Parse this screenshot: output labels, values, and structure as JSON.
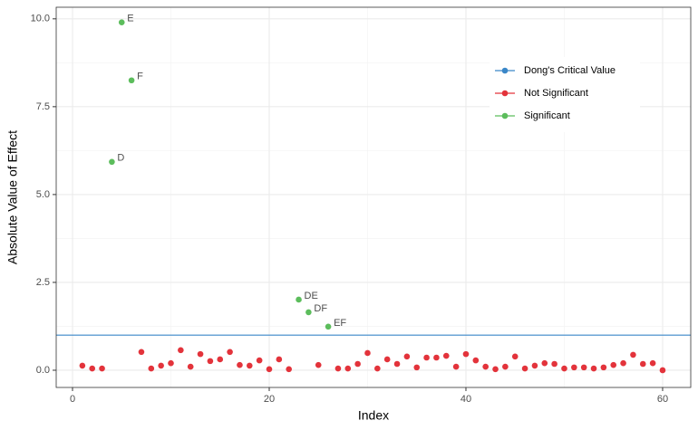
{
  "chart_data": {
    "type": "scatter",
    "xlabel": "Index",
    "ylabel": "Absolute Value of Effect",
    "xlim": [
      -1.66,
      62.86
    ],
    "ylim": [
      -0.49,
      10.33
    ],
    "xticks": [
      0,
      20,
      40,
      60
    ],
    "yticks": [
      {
        "value": 0,
        "label": "0.0"
      },
      2.5,
      {
        "value": 5,
        "label": "5.0"
      },
      7.5,
      {
        "value": 10,
        "label": "10.0"
      }
    ],
    "grid": true,
    "legend": "top-right",
    "series": [
      {
        "name": "Dong's Critical Value",
        "kind": "hline",
        "color": "#3a87c8",
        "values": [
          1.0
        ]
      },
      {
        "name": "Not Significant",
        "kind": "points",
        "color": "#e3333b",
        "x": [
          1,
          2,
          3,
          7,
          8,
          9,
          10,
          11,
          12,
          13,
          14,
          15,
          16,
          17,
          18,
          19,
          20,
          21,
          22,
          25,
          27,
          28,
          29,
          30,
          31,
          32,
          33,
          34,
          35,
          36,
          37,
          38,
          39,
          40,
          41,
          42,
          43,
          44,
          45,
          46,
          47,
          48,
          49,
          50,
          51,
          52,
          53,
          54,
          55,
          56,
          57,
          58,
          59,
          60
        ],
        "values": [
          0.13,
          0.05,
          0.05,
          0.52,
          0.05,
          0.13,
          0.2,
          0.57,
          0.1,
          0.46,
          0.26,
          0.31,
          0.52,
          0.15,
          0.13,
          0.28,
          0.03,
          0.31,
          0.03,
          0.15,
          0.05,
          0.05,
          0.18,
          0.49,
          0.05,
          0.31,
          0.18,
          0.39,
          0.08,
          0.36,
          0.36,
          0.41,
          0.1,
          0.46,
          0.28,
          0.1,
          0.03,
          0.1,
          0.39,
          0.05,
          0.13,
          0.2,
          0.18,
          0.05,
          0.08,
          0.08,
          0.05,
          0.08,
          0.15,
          0.2,
          0.44,
          0.18,
          0.2,
          0.0
        ]
      },
      {
        "name": "Significant",
        "kind": "points",
        "color": "#5cbd5c",
        "x": [
          4,
          5,
          6,
          23,
          24,
          26
        ],
        "values": [
          5.93,
          9.9,
          8.25,
          2.01,
          1.65,
          1.24
        ],
        "labels": [
          "D",
          "E",
          "F",
          "DE",
          "DF",
          "EF"
        ]
      }
    ]
  }
}
